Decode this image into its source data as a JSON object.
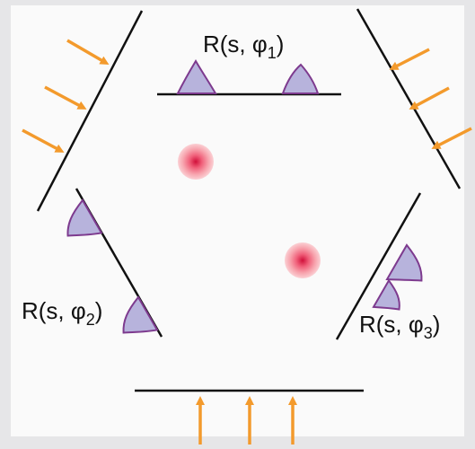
{
  "labels": [
    {
      "main": "R(s, φ",
      "sub": "1",
      "end": ")"
    },
    {
      "main": "R(s, φ",
      "sub": "2",
      "end": ")"
    },
    {
      "main": "R(s, φ",
      "sub": "3",
      "end": ")"
    }
  ]
}
